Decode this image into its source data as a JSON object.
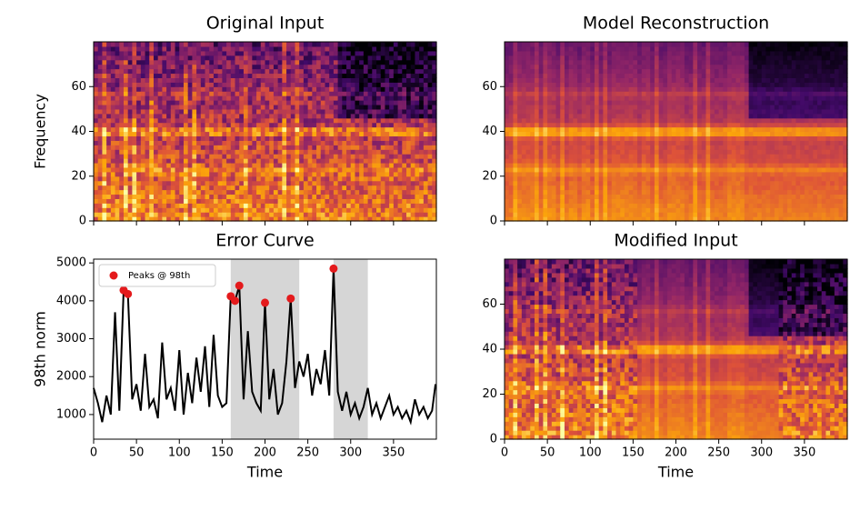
{
  "chart_data": [
    {
      "type": "heatmap",
      "title": "Original Input",
      "ylabel": "Frequency",
      "colormap": "inferno",
      "xlim": [
        0,
        400
      ],
      "ylim": [
        0,
        80
      ],
      "xticks": [
        0,
        50,
        100,
        150,
        200,
        250,
        300,
        350
      ],
      "yticks": [
        0,
        20,
        40,
        60
      ]
    },
    {
      "type": "heatmap",
      "title": "Model Reconstruction",
      "colormap": "inferno",
      "xlim": [
        0,
        400
      ],
      "ylim": [
        0,
        80
      ],
      "xticks": [
        0,
        50,
        100,
        150,
        200,
        250,
        300,
        350
      ],
      "yticks": [
        0,
        20,
        40,
        60
      ]
    },
    {
      "type": "line",
      "title": "Error Curve",
      "xlabel": "Time",
      "ylabel": "98th norm",
      "legend": "upper left",
      "xlim": [
        0,
        400
      ],
      "ylim": [
        350,
        5100
      ],
      "xticks": [
        0,
        50,
        100,
        150,
        200,
        250,
        300,
        350
      ],
      "yticks": [
        1000,
        2000,
        3000,
        4000,
        5000
      ],
      "spans": [
        [
          160,
          240
        ],
        [
          280,
          320
        ]
      ],
      "span_color": "#d6d6d6",
      "series": [
        {
          "type": "line",
          "color": "#000000",
          "x": [
            0,
            5,
            10,
            15,
            20,
            25,
            30,
            35,
            40,
            45,
            50,
            55,
            60,
            65,
            70,
            75,
            80,
            85,
            90,
            95,
            100,
            105,
            110,
            115,
            120,
            125,
            130,
            135,
            140,
            145,
            150,
            155,
            160,
            165,
            170,
            175,
            180,
            185,
            190,
            195,
            200,
            205,
            210,
            215,
            220,
            225,
            230,
            235,
            240,
            245,
            250,
            255,
            260,
            265,
            270,
            275,
            280,
            285,
            290,
            295,
            300,
            305,
            310,
            315,
            320,
            325,
            330,
            335,
            340,
            345,
            350,
            355,
            360,
            365,
            370,
            375,
            380,
            385,
            390,
            395,
            399
          ],
          "values": [
            1700,
            1300,
            800,
            1500,
            1000,
            3700,
            1100,
            4280,
            4180,
            1400,
            1800,
            1100,
            2600,
            1200,
            1400,
            900,
            2900,
            1400,
            1700,
            1100,
            2700,
            1000,
            2100,
            1300,
            2500,
            1600,
            2800,
            1200,
            3100,
            1500,
            1200,
            1300,
            4120,
            4000,
            4400,
            1400,
            3200,
            1600,
            1300,
            1100,
            3950,
            1400,
            2200,
            1000,
            1300,
            2400,
            4060,
            1700,
            2400,
            2000,
            2600,
            1500,
            2200,
            1800,
            2700,
            1500,
            4850,
            1600,
            1100,
            1600,
            1000,
            1300,
            900,
            1200,
            1700,
            1000,
            1300,
            900,
            1200,
            1500,
            1000,
            1200,
            900,
            1100,
            800,
            1400,
            1000,
            1200,
            900,
            1100,
            1800
          ]
        },
        {
          "type": "scatter",
          "name": "Peaks @ 98th",
          "color": "#e41a1c",
          "x": [
            35,
            40,
            160,
            165,
            170,
            200,
            230,
            280
          ],
          "values": [
            4280,
            4180,
            4120,
            4000,
            4400,
            3950,
            4060,
            4850
          ]
        }
      ]
    },
    {
      "type": "heatmap",
      "title": "Modified Input",
      "xlabel": "Time",
      "colormap": "inferno",
      "xlim": [
        0,
        400
      ],
      "ylim": [
        0,
        80
      ],
      "xticks": [
        0,
        50,
        100,
        150,
        200,
        250,
        300,
        350
      ],
      "yticks": [
        0,
        20,
        40,
        60
      ]
    }
  ]
}
